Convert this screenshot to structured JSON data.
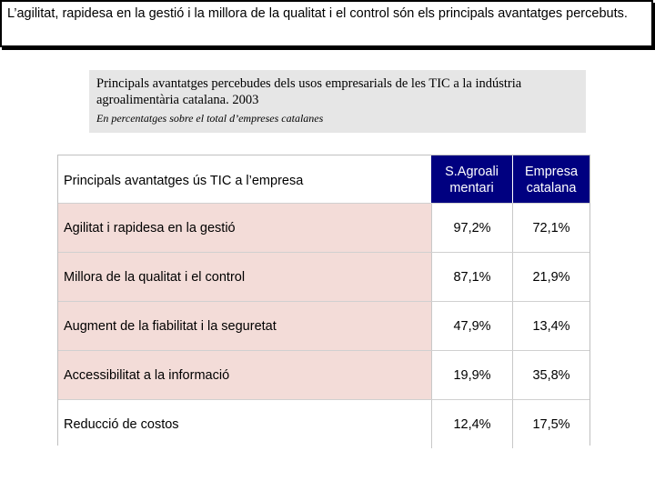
{
  "header": {
    "text": "L’agilitat, rapidesa en la gestió i la millora de la qualitat i el control són els principals avantatges percebuts."
  },
  "subtitle": {
    "main": "Principals avantatges percebudes dels usos empresarials de les TIC a la indústria agroalimentària catalana. 2003",
    "sub": "En percentatges sobre el total d’empreses catalanes"
  },
  "table": {
    "columns": [
      "Principals avantatges ús TIC a l’empresa",
      "S.Agroalimentari",
      "Empresa catalana"
    ],
    "col2_lines": [
      "S.Agroali",
      "mentari"
    ],
    "col3_lines": [
      "Empresa",
      "catalana"
    ],
    "rows": [
      {
        "label": "Agilitat i rapidesa en la gestió",
        "agro": "97,2%",
        "emp": "72,1%"
      },
      {
        "label": "Millora de la qualitat i el control",
        "agro": "87,1%",
        "emp": "21,9%"
      },
      {
        "label": "Augment de la fiabilitat i la seguretat",
        "agro": "47,9%",
        "emp": "13,4%"
      },
      {
        "label": "Accessibilitat a la informació",
        "agro": "19,9%",
        "emp": "35,8%"
      },
      {
        "label": "Reducció de costos",
        "agro": "12,4%",
        "emp": "17,5%"
      }
    ]
  }
}
